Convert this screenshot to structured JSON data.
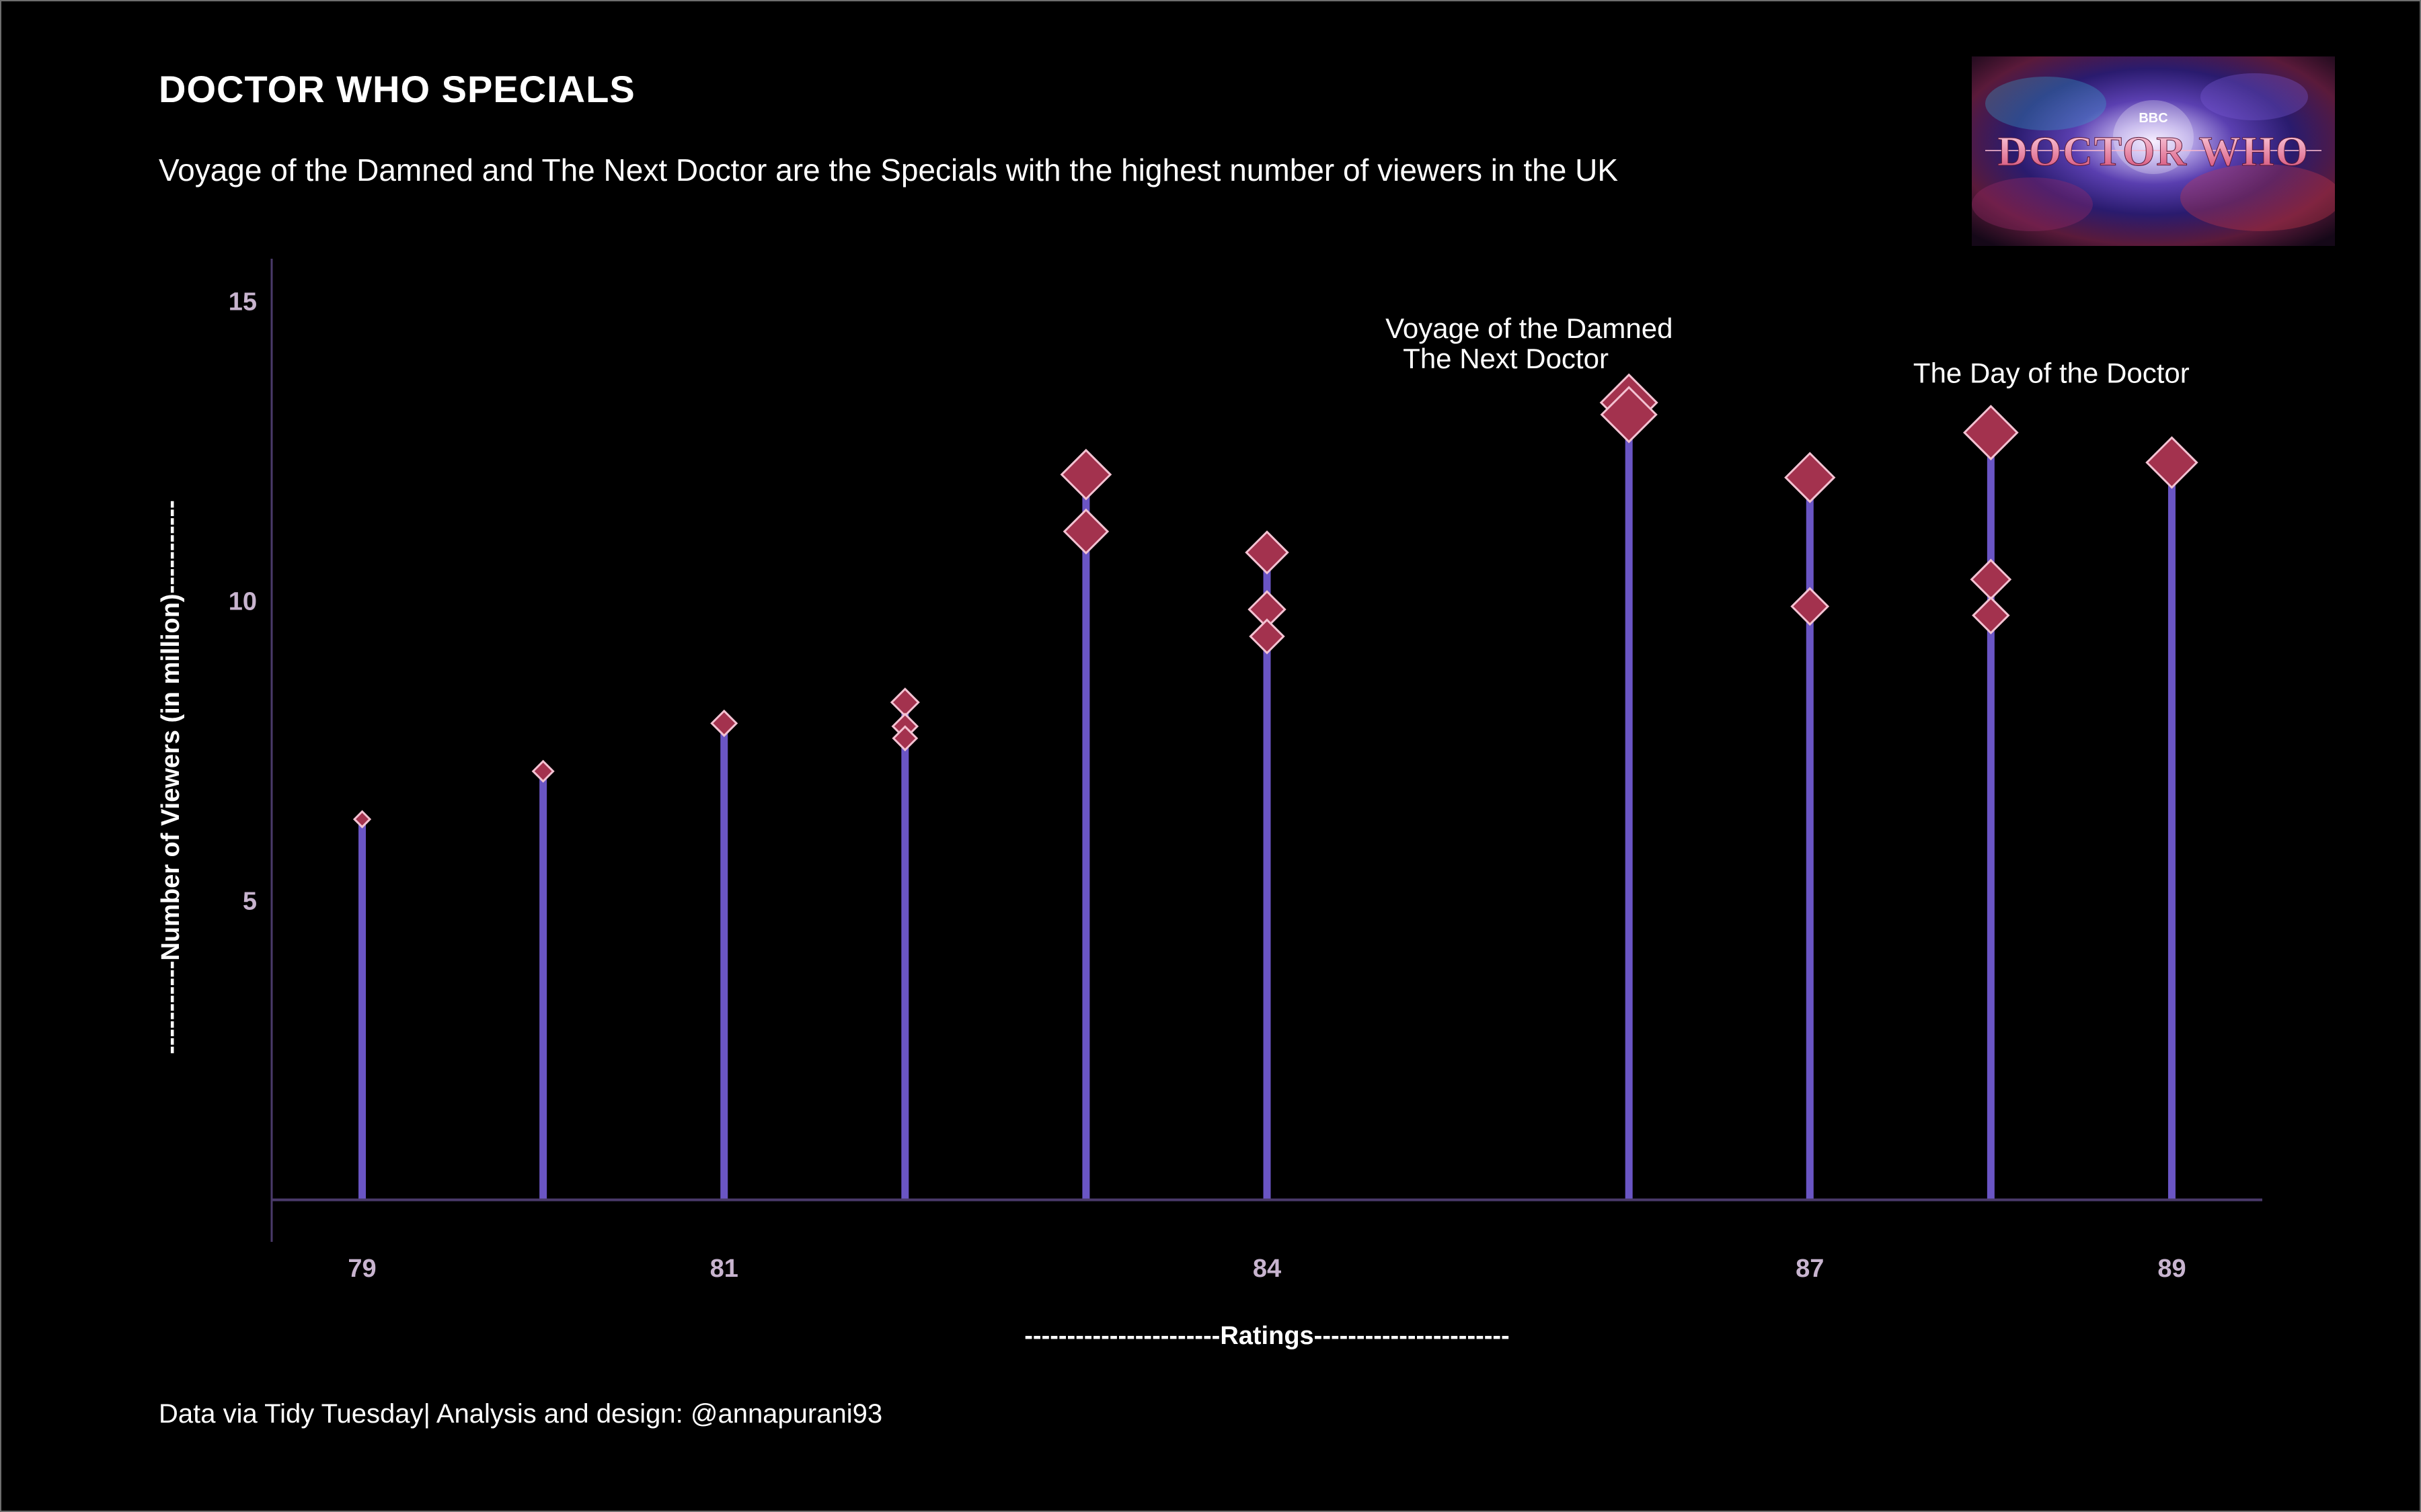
{
  "header": {
    "title": "DOCTOR WHO SPECIALS",
    "subtitle": "Voyage of the Damned and The Next Doctor are the Specials with the highest number of viewers in the UK"
  },
  "footer": {
    "caption": "Data via Tidy Tuesday| Analysis and design: @annapurani93"
  },
  "logo": {
    "brand": "BBC",
    "text": "DOCTOR WHO"
  },
  "colors": {
    "background": "#000000",
    "stem": "#6a55c4",
    "point_fill": "#a3324e",
    "point_stroke": "#f3c2d2",
    "axis_line": "#4a3a6a",
    "tick_label": "#c8b4cf"
  },
  "chart_data": {
    "type": "scatter",
    "style": "lollipop",
    "xlabel": "-----------------------Ratings-----------------------",
    "ylabel": "-----------Number of Viewers (in million)-----------",
    "xlim": [
      78.5,
      89.5
    ],
    "ylim": [
      -0.7,
      15.7
    ],
    "x_ticks": [
      79,
      81,
      84,
      87,
      89
    ],
    "y_ticks": [
      5,
      10,
      15
    ],
    "grid": false,
    "points": [
      {
        "x": 79,
        "y": 6.35
      },
      {
        "x": 80,
        "y": 7.15
      },
      {
        "x": 81,
        "y": 7.95
      },
      {
        "x": 82,
        "y": 8.3
      },
      {
        "x": 82,
        "y": 7.9
      },
      {
        "x": 82,
        "y": 7.7
      },
      {
        "x": 83,
        "y": 12.1
      },
      {
        "x": 83,
        "y": 11.15
      },
      {
        "x": 84,
        "y": 10.8
      },
      {
        "x": 84,
        "y": 9.85
      },
      {
        "x": 84,
        "y": 9.4
      },
      {
        "x": 86,
        "y": 13.3
      },
      {
        "x": 86,
        "y": 13.1
      },
      {
        "x": 87,
        "y": 12.05
      },
      {
        "x": 87,
        "y": 9.9
      },
      {
        "x": 88,
        "y": 12.8
      },
      {
        "x": 88,
        "y": 10.35
      },
      {
        "x": 88,
        "y": 9.75
      },
      {
        "x": 89,
        "y": 12.3
      }
    ],
    "annotations": [
      {
        "lines": [
          "Voyage of the Damned",
          "The Next Doctor"
        ],
        "x": 86,
        "y": 13.3,
        "anchor": "left-of-point"
      },
      {
        "lines": [
          "The Day of the Doctor"
        ],
        "x": 88,
        "y": 12.8,
        "anchor": "above-point"
      }
    ]
  }
}
